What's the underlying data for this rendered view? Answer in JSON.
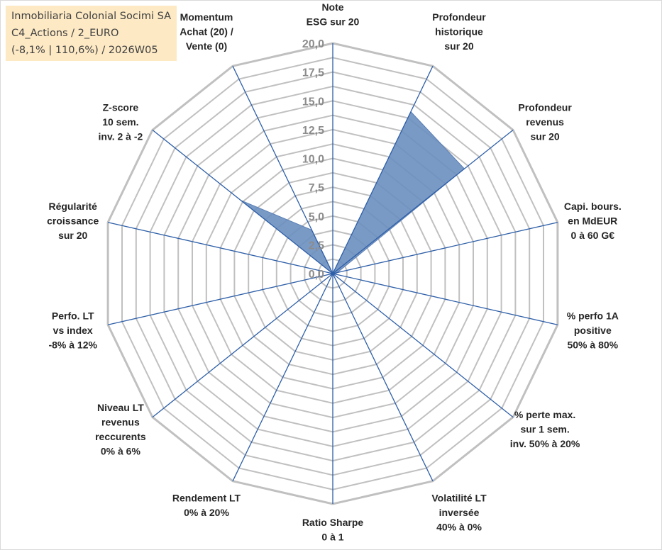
{
  "header": {
    "line1": "Inmobiliaria Colonial Socimi SA",
    "line2": "C4_Actions / 2_EURO",
    "line3": "(-8,1% | 110,6%) / 2026W05"
  },
  "chart_data": {
    "type": "radar",
    "axes": [
      [
        "Note",
        "ESG sur 20"
      ],
      [
        "Profondeur",
        "historique",
        "sur 20"
      ],
      [
        "Profondeur",
        "revenus",
        "sur 20"
      ],
      [
        "Capi. bours.",
        "en MdEUR",
        "0 à 60 G€"
      ],
      [
        "% perfo 1A",
        "positive",
        "50% à 80%"
      ],
      [
        "% perte max.",
        "sur 1 sem.",
        "inv. 50% à 20%"
      ],
      [
        "Volatilité LT",
        "inversée",
        "40% à 0%"
      ],
      [
        "Ratio Sharpe",
        "0 à 1"
      ],
      [
        "Rendement LT",
        "0% à 20%"
      ],
      [
        "Niveau LT",
        "revenus",
        "reccurents",
        "0% à 6%"
      ],
      [
        "Perfo. LT",
        "vs index",
        "-8% à 12%"
      ],
      [
        "Régularité",
        "croissance",
        "sur 20"
      ],
      [
        "Z-score",
        "10 sem.",
        "inv. 2 à -2"
      ],
      [
        "Momentum",
        "Achat (20) /",
        "Vente (0)"
      ]
    ],
    "tick_labels": [
      "0,0",
      "2,5",
      "5,0",
      "7,5",
      "10,0",
      "12,5",
      "15,0",
      "17,5",
      "20,0"
    ],
    "r_range": [
      0,
      20
    ],
    "values": [
      0,
      15.6,
      14.6,
      0.4,
      0.2,
      0,
      0,
      0,
      0,
      0,
      0,
      0,
      10.2,
      4.2
    ],
    "colors": {
      "fill": "#6b8fc0",
      "spoke": "#2e5fa8",
      "grid": "#c0c0c0"
    }
  }
}
